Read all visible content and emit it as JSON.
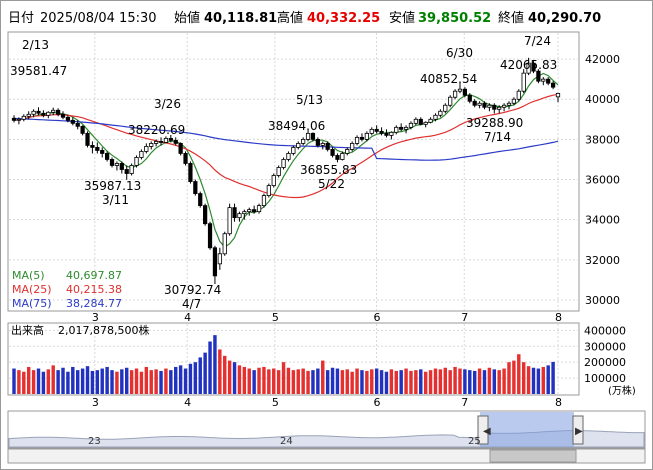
{
  "header": {
    "date_label": "日付",
    "datetime": "2025/08/04 15:30",
    "open_label": "始値",
    "open": "40,118.81",
    "high_label": "高値",
    "high": "40,332.25",
    "low_label": "安値",
    "low": "39,850.52",
    "close_label": "終値",
    "close": "40,290.70",
    "colors": {
      "high": "#e60000",
      "low": "#008000",
      "default": "#000000"
    }
  },
  "ma_legend": [
    {
      "label": "MA(5)",
      "value": "40,697.87",
      "color": "#2e8b2e"
    },
    {
      "label": "MA(25)",
      "value": "40,215.38",
      "color": "#e03030"
    },
    {
      "label": "MA(75)",
      "value": "38,284.77",
      "color": "#2c3cc8"
    }
  ],
  "volume_legend": {
    "label": "出来高",
    "value": "2,017,878,500株"
  },
  "volume_unit": "(万株)",
  "chart_data": {
    "type": "candlestick",
    "price_axis": {
      "ticks": [
        30000,
        32000,
        34000,
        36000,
        38000,
        40000,
        42000
      ],
      "labels": [
        "30000",
        "32000",
        "34000",
        "36000",
        "38000",
        "40000",
        "42000"
      ],
      "ylim": [
        29500,
        43300
      ]
    },
    "volume_axis": {
      "ticks": [
        100000,
        200000,
        300000,
        400000
      ],
      "labels": [
        "100000",
        "200000",
        "300000",
        "400000"
      ],
      "ylim": [
        0,
        440000
      ]
    },
    "x_month_labels": [
      "3",
      "4",
      "5",
      "6",
      "7",
      "8"
    ],
    "annotations": [
      {
        "date": "2/13",
        "value": "39581.47"
      },
      {
        "date": "3/26",
        "value": "38220.69"
      },
      {
        "date": "3/11",
        "value": "35987.13"
      },
      {
        "date": "4/7",
        "value": "30792.74"
      },
      {
        "date": "5/13",
        "value": "38494.06"
      },
      {
        "date": "5/22",
        "value": "36855.83"
      },
      {
        "date": "6/30",
        "value": "40852.54"
      },
      {
        "date": "7/24",
        "value": "42065.83"
      },
      {
        "date": "7/14",
        "value": "39288.90"
      }
    ],
    "candles": [
      [
        39050,
        39200,
        38850,
        38950
      ],
      [
        38950,
        39100,
        38750,
        39000
      ],
      [
        39000,
        39250,
        38900,
        39150
      ],
      [
        39150,
        39400,
        39000,
        39250
      ],
      [
        39250,
        39500,
        39100,
        39400
      ],
      [
        39400,
        39600,
        39200,
        39300
      ],
      [
        39300,
        39450,
        39100,
        39200
      ],
      [
        39200,
        39400,
        39050,
        39350
      ],
      [
        39350,
        39581,
        39200,
        39450
      ],
      [
        39450,
        39550,
        39150,
        39250
      ],
      [
        39250,
        39400,
        39000,
        39100
      ],
      [
        39100,
        39200,
        38850,
        38950
      ],
      [
        38950,
        39100,
        38700,
        38800
      ],
      [
        38800,
        38950,
        38500,
        38650
      ],
      [
        38650,
        38700,
        38200,
        38300
      ],
      [
        38300,
        38400,
        37600,
        37700
      ],
      [
        37700,
        37900,
        37300,
        37600
      ],
      [
        37600,
        37850,
        37300,
        37450
      ],
      [
        37450,
        37600,
        37100,
        37300
      ],
      [
        37300,
        37400,
        36900,
        37000
      ],
      [
        37000,
        37100,
        36600,
        36700
      ],
      [
        36700,
        36900,
        36450,
        36800
      ],
      [
        36800,
        36900,
        36300,
        36500
      ],
      [
        36500,
        36700,
        35987,
        36300
      ],
      [
        36300,
        36800,
        36200,
        36700
      ],
      [
        36700,
        37200,
        36600,
        37100
      ],
      [
        37100,
        37500,
        37000,
        37400
      ],
      [
        37400,
        37800,
        37300,
        37650
      ],
      [
        37650,
        37900,
        37500,
        37800
      ],
      [
        37800,
        38000,
        37650,
        37900
      ],
      [
        37900,
        38100,
        37700,
        37850
      ],
      [
        37850,
        38150,
        37800,
        38050
      ],
      [
        38050,
        38221,
        37850,
        37950
      ],
      [
        37950,
        38100,
        37700,
        37800
      ],
      [
        37800,
        37850,
        37200,
        37300
      ],
      [
        37300,
        37400,
        36700,
        36800
      ],
      [
        36800,
        36900,
        35800,
        35900
      ],
      [
        35900,
        36000,
        35200,
        35300
      ],
      [
        35300,
        35400,
        34600,
        34700
      ],
      [
        34700,
        34800,
        33700,
        33800
      ],
      [
        33800,
        33900,
        32500,
        32600
      ],
      [
        32600,
        32700,
        30793,
        31200
      ],
      [
        31800,
        32600,
        31500,
        32300
      ],
      [
        32300,
        33400,
        32200,
        33300
      ],
      [
        33300,
        34800,
        33200,
        34600
      ],
      [
        34600,
        34800,
        33900,
        34100
      ],
      [
        34100,
        34400,
        33900,
        34300
      ],
      [
        34300,
        34500,
        34000,
        34400
      ],
      [
        34400,
        34600,
        34200,
        34500
      ],
      [
        34500,
        34700,
        34300,
        34400
      ],
      [
        34400,
        34800,
        34300,
        34700
      ],
      [
        34700,
        35300,
        34600,
        35200
      ],
      [
        35200,
        35800,
        35100,
        35700
      ],
      [
        35700,
        36300,
        35600,
        36200
      ],
      [
        36200,
        36700,
        36100,
        36600
      ],
      [
        36600,
        37100,
        36500,
        37000
      ],
      [
        37000,
        37400,
        36900,
        37300
      ],
      [
        37300,
        37700,
        37200,
        37600
      ],
      [
        37600,
        37900,
        37500,
        37800
      ],
      [
        37800,
        38100,
        37700,
        38000
      ],
      [
        38000,
        38494,
        37900,
        38300
      ],
      [
        38300,
        38350,
        37900,
        38000
      ],
      [
        38000,
        38100,
        37600,
        37700
      ],
      [
        37700,
        37900,
        37500,
        37800
      ],
      [
        37800,
        37900,
        37400,
        37500
      ],
      [
        37500,
        37600,
        37100,
        37200
      ],
      [
        37200,
        37300,
        36856,
        37000
      ],
      [
        37000,
        37400,
        36950,
        37300
      ],
      [
        37300,
        37600,
        37200,
        37500
      ],
      [
        37500,
        37900,
        37400,
        37800
      ],
      [
        37800,
        38200,
        37700,
        38100
      ],
      [
        38100,
        38300,
        37900,
        38000
      ],
      [
        38000,
        38400,
        37900,
        38300
      ],
      [
        38300,
        38600,
        38200,
        38500
      ],
      [
        38500,
        38700,
        38300,
        38400
      ],
      [
        38400,
        38600,
        38200,
        38300
      ],
      [
        38300,
        38500,
        38100,
        38200
      ],
      [
        38200,
        38400,
        38000,
        38350
      ],
      [
        38350,
        38700,
        38250,
        38600
      ],
      [
        38600,
        38800,
        38400,
        38500
      ],
      [
        38500,
        38700,
        38300,
        38600
      ],
      [
        38600,
        38900,
        38500,
        38800
      ],
      [
        38800,
        39100,
        38700,
        39000
      ],
      [
        39000,
        39100,
        38700,
        38750
      ],
      [
        38750,
        38900,
        38600,
        38850
      ],
      [
        38850,
        39100,
        38800,
        39000
      ],
      [
        39000,
        39300,
        38900,
        39200
      ],
      [
        39200,
        39500,
        39100,
        39400
      ],
      [
        39400,
        39800,
        39300,
        39700
      ],
      [
        39700,
        40200,
        39600,
        40100
      ],
      [
        40100,
        40500,
        40000,
        40400
      ],
      [
        40400,
        40853,
        40300,
        40500
      ],
      [
        40500,
        40600,
        40100,
        40200
      ],
      [
        40200,
        40300,
        39800,
        39900
      ],
      [
        39900,
        40000,
        39600,
        39700
      ],
      [
        39700,
        39900,
        39550,
        39800
      ],
      [
        39800,
        39900,
        39500,
        39600
      ],
      [
        39600,
        39800,
        39400,
        39700
      ],
      [
        39700,
        39800,
        39289,
        39500
      ],
      [
        39500,
        39700,
        39300,
        39600
      ],
      [
        39600,
        39800,
        39400,
        39700
      ],
      [
        39700,
        39900,
        39500,
        39800
      ],
      [
        39800,
        40100,
        39700,
        40000
      ],
      [
        40000,
        40500,
        39900,
        40400
      ],
      [
        40400,
        41500,
        40300,
        41300
      ],
      [
        41300,
        42066,
        41200,
        41800
      ],
      [
        41800,
        41900,
        41300,
        41400
      ],
      [
        41400,
        41500,
        40800,
        40900
      ],
      [
        40900,
        41100,
        40700,
        41000
      ],
      [
        41000,
        41100,
        40700,
        40800
      ],
      [
        40800,
        40900,
        40500,
        40600
      ],
      [
        40119,
        40332,
        39851,
        40291
      ]
    ],
    "volumes": [
      160000,
      150000,
      140000,
      170000,
      150000,
      160000,
      140000,
      155000,
      180000,
      150000,
      165000,
      140000,
      170000,
      150000,
      160000,
      175000,
      145000,
      150000,
      160000,
      170000,
      150000,
      140000,
      155000,
      165000,
      150000,
      160000,
      140000,
      170000,
      150000,
      155000,
      145000,
      160000,
      150000,
      170000,
      180000,
      160000,
      190000,
      200000,
      230000,
      260000,
      330000,
      370000,
      280000,
      240000,
      210000,
      200000,
      180000,
      170000,
      160000,
      150000,
      165000,
      170000,
      155000,
      160000,
      150000,
      200000,
      165000,
      150000,
      155000,
      160000,
      145000,
      150000,
      160000,
      210000,
      150000,
      165000,
      160000,
      150000,
      155000,
      140000,
      160000,
      150000,
      145000,
      155000,
      160000,
      150000,
      140000,
      155000,
      145000,
      150000,
      160000,
      145000,
      150000,
      155000,
      140000,
      150000,
      160000,
      155000,
      165000,
      150000,
      170000,
      160000,
      155000,
      150000,
      145000,
      160000,
      150000,
      165000,
      155000,
      150000,
      160000,
      200000,
      210000,
      250000,
      200000,
      175000,
      165000,
      160000,
      170000,
      180000,
      201788
    ]
  },
  "navigator": {
    "year_labels": [
      "23",
      "24",
      "25"
    ]
  }
}
